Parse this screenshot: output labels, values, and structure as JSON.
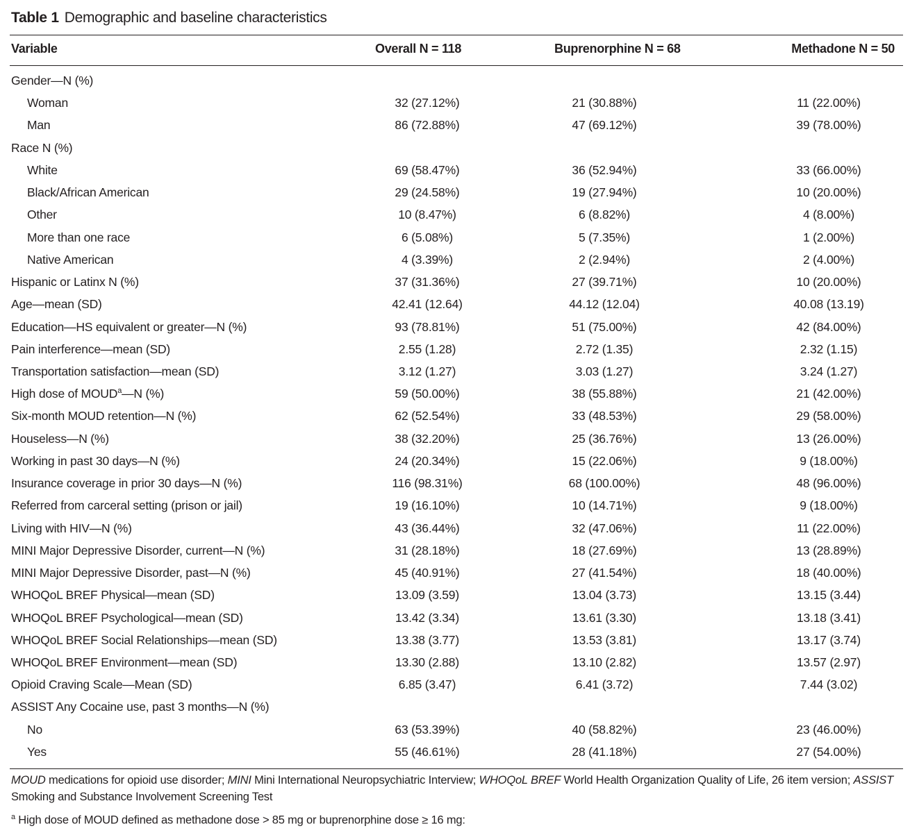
{
  "caption": {
    "label": "Table 1",
    "title": "Demographic and baseline characteristics"
  },
  "columns": [
    "Variable",
    "Overall N = 118",
    "Buprenorphine N = 68",
    "Methadone N = 50"
  ],
  "rows": [
    {
      "label": "Gender—N (%)",
      "sub": false,
      "values": [
        "",
        "",
        ""
      ]
    },
    {
      "label": "Woman",
      "sub": true,
      "values": [
        "32 (27.12%)",
        "21 (30.88%)",
        "11 (22.00%)"
      ]
    },
    {
      "label": "Man",
      "sub": true,
      "values": [
        "86 (72.88%)",
        "47 (69.12%)",
        "39 (78.00%)"
      ]
    },
    {
      "label": "Race N (%)",
      "sub": false,
      "values": [
        "",
        "",
        ""
      ]
    },
    {
      "label": "White",
      "sub": true,
      "values": [
        "69 (58.47%)",
        "36 (52.94%)",
        "33 (66.00%)"
      ]
    },
    {
      "label": "Black/African American",
      "sub": true,
      "values": [
        "29 (24.58%)",
        "19 (27.94%)",
        "10 (20.00%)"
      ]
    },
    {
      "label": "Other",
      "sub": true,
      "values": [
        "10 (8.47%)",
        "6 (8.82%)",
        "4 (8.00%)"
      ]
    },
    {
      "label": "More than one race",
      "sub": true,
      "values": [
        "6 (5.08%)",
        "5 (7.35%)",
        "1 (2.00%)"
      ]
    },
    {
      "label": "Native American",
      "sub": true,
      "values": [
        "4 (3.39%)",
        "2 (2.94%)",
        "2 (4.00%)"
      ]
    },
    {
      "label": "Hispanic or Latinx N (%)",
      "sub": false,
      "values": [
        "37 (31.36%)",
        "27 (39.71%)",
        "10 (20.00%)"
      ]
    },
    {
      "label": "Age—mean (SD)",
      "sub": false,
      "values": [
        "42.41 (12.64)",
        "44.12 (12.04)",
        "40.08 (13.19)"
      ]
    },
    {
      "label": "Education—HS equivalent or greater—N (%)",
      "sub": false,
      "values": [
        "93 (78.81%)",
        "51 (75.00%)",
        "42 (84.00%)"
      ]
    },
    {
      "label": "Pain interference—mean (SD)",
      "sub": false,
      "values": [
        "2.55 (1.28)",
        "2.72 (1.35)",
        "2.32 (1.15)"
      ]
    },
    {
      "label": "Transportation satisfaction—mean (SD)",
      "sub": false,
      "values": [
        "3.12 (1.27)",
        "3.03 (1.27)",
        "3.24 (1.27)"
      ]
    },
    {
      "label": "High dose of MOUD",
      "sup": "a",
      "label_after": "—N (%)",
      "sub": false,
      "values": [
        "59 (50.00%)",
        "38 (55.88%)",
        "21 (42.00%)"
      ]
    },
    {
      "label": "Six-month MOUD retention—N (%)",
      "sub": false,
      "values": [
        "62 (52.54%)",
        "33 (48.53%)",
        "29 (58.00%)"
      ]
    },
    {
      "label": "Houseless—N (%)",
      "sub": false,
      "values": [
        "38 (32.20%)",
        "25 (36.76%)",
        "13 (26.00%)"
      ]
    },
    {
      "label": "Working in past 30 days—N (%)",
      "sub": false,
      "values": [
        "24 (20.34%)",
        "15 (22.06%)",
        "9 (18.00%)"
      ]
    },
    {
      "label": "Insurance coverage in prior 30 days—N (%)",
      "sub": false,
      "values": [
        "116 (98.31%)",
        "68 (100.00%)",
        "48 (96.00%)"
      ]
    },
    {
      "label": "Referred from carceral setting (prison or jail)",
      "sub": false,
      "values": [
        "19 (16.10%)",
        "10 (14.71%)",
        "9 (18.00%)"
      ]
    },
    {
      "label": "Living with HIV—N (%)",
      "sub": false,
      "values": [
        "43 (36.44%)",
        "32 (47.06%)",
        "11 (22.00%)"
      ]
    },
    {
      "label": "MINI Major Depressive Disorder, current—N (%)",
      "sub": false,
      "values": [
        "31 (28.18%)",
        "18 (27.69%)",
        "13 (28.89%)"
      ]
    },
    {
      "label": "MINI Major Depressive Disorder, past—N (%)",
      "sub": false,
      "values": [
        "45 (40.91%)",
        "27 (41.54%)",
        "18 (40.00%)"
      ]
    },
    {
      "label": "WHOQoL BREF Physical—mean (SD)",
      "sub": false,
      "values": [
        "13.09 (3.59)",
        "13.04 (3.73)",
        "13.15 (3.44)"
      ]
    },
    {
      "label": "WHOQoL BREF Psychological—mean (SD)",
      "sub": false,
      "values": [
        "13.42 (3.34)",
        "13.61 (3.30)",
        "13.18 (3.41)"
      ]
    },
    {
      "label": "WHOQoL BREF Social Relationships—mean (SD)",
      "sub": false,
      "values": [
        "13.38 (3.77)",
        "13.53 (3.81)",
        "13.17 (3.74)"
      ]
    },
    {
      "label": "WHOQoL BREF Environment—mean (SD)",
      "sub": false,
      "values": [
        "13.30 (2.88)",
        "13.10 (2.82)",
        "13.57 (2.97)"
      ]
    },
    {
      "label": "Opioid Craving Scale—Mean (SD)",
      "sub": false,
      "values": [
        "6.85 (3.47)",
        "6.41 (3.72)",
        "7.44 (3.02)"
      ]
    },
    {
      "label": "ASSIST Any Cocaine use, past 3 months—N (%)",
      "sub": false,
      "values": [
        "",
        "",
        ""
      ]
    },
    {
      "label": "No",
      "sub": true,
      "values": [
        "63 (53.39%)",
        "40 (58.82%)",
        "23 (46.00%)"
      ]
    },
    {
      "label": "Yes",
      "sub": true,
      "values": [
        "55 (46.61%)",
        "28 (41.18%)",
        "27 (54.00%)"
      ]
    }
  ],
  "footnotes": {
    "abbrev": [
      {
        "term": "MOUD",
        "def": " medications for opioid use disorder; "
      },
      {
        "term": "MINI",
        "def": " Mini International Neuropsychiatric Interview; "
      },
      {
        "term": "WHOQoL BREF",
        "def": " World Health Organization Quality of Life, 26 item version; "
      },
      {
        "term": "ASSIST",
        "def": " Smoking and Substance Involvement Screening Test"
      }
    ],
    "a_mark": "a",
    "a_text": " High dose of MOUD defined as methadone dose > 85 mg or buprenorphine dose ≥ 16 mg:"
  }
}
